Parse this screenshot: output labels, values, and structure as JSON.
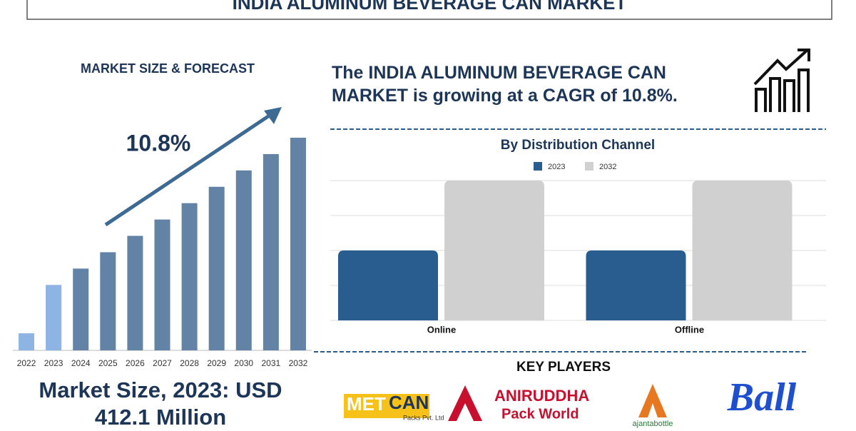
{
  "header": {
    "title": "INDIA ALUMINUM BEVERAGE CAN MARKET"
  },
  "statement": "The INDIA ALUMINUM BEVERAGE CAN MARKET is growing at a CAGR of 10.8%.",
  "market_size": "Market Size, 2023: USD 412.1 Million",
  "key_players": {
    "title": "KEY PLAYERS",
    "logos": [
      [
        "MET",
        "CAN",
        "Packs Pvt. Ltd"
      ],
      [
        "ANIRUDDHA",
        "Pack World"
      ],
      [
        "ajantabottle"
      ],
      [
        "Ball"
      ]
    ]
  },
  "chart_data": [
    {
      "type": "bar",
      "title": "MARKET SIZE & FORECAST",
      "annotation": "10.8%",
      "categories": [
        "2022",
        "2023",
        "2024",
        "2025",
        "2026",
        "2027",
        "2028",
        "2029",
        "2030",
        "2031",
        "2032"
      ],
      "values": [
        24,
        92,
        115,
        138,
        161,
        184,
        207,
        230,
        253,
        276,
        299
      ],
      "colors": [
        "#8db4e2",
        "#8db4e2",
        "#6283a6",
        "#6283a6",
        "#6283a6",
        "#6283a6",
        "#6283a6",
        "#6283a6",
        "#6283a6",
        "#6283a6",
        "#6283a6"
      ],
      "ylim": [
        0,
        300
      ]
    },
    {
      "type": "grouped-bar",
      "title": "By Distribution Channel",
      "categories": [
        "Online",
        "Offline"
      ],
      "series": [
        {
          "name": "2023",
          "color": "#2a5d8f",
          "values": [
            2,
            2
          ]
        },
        {
          "name": "2032",
          "color": "#d0d0d0",
          "values": [
            4,
            4
          ]
        }
      ],
      "ylim": [
        0,
        4
      ],
      "yticks": [
        0,
        1,
        2,
        3,
        4
      ],
      "grid": true
    }
  ]
}
